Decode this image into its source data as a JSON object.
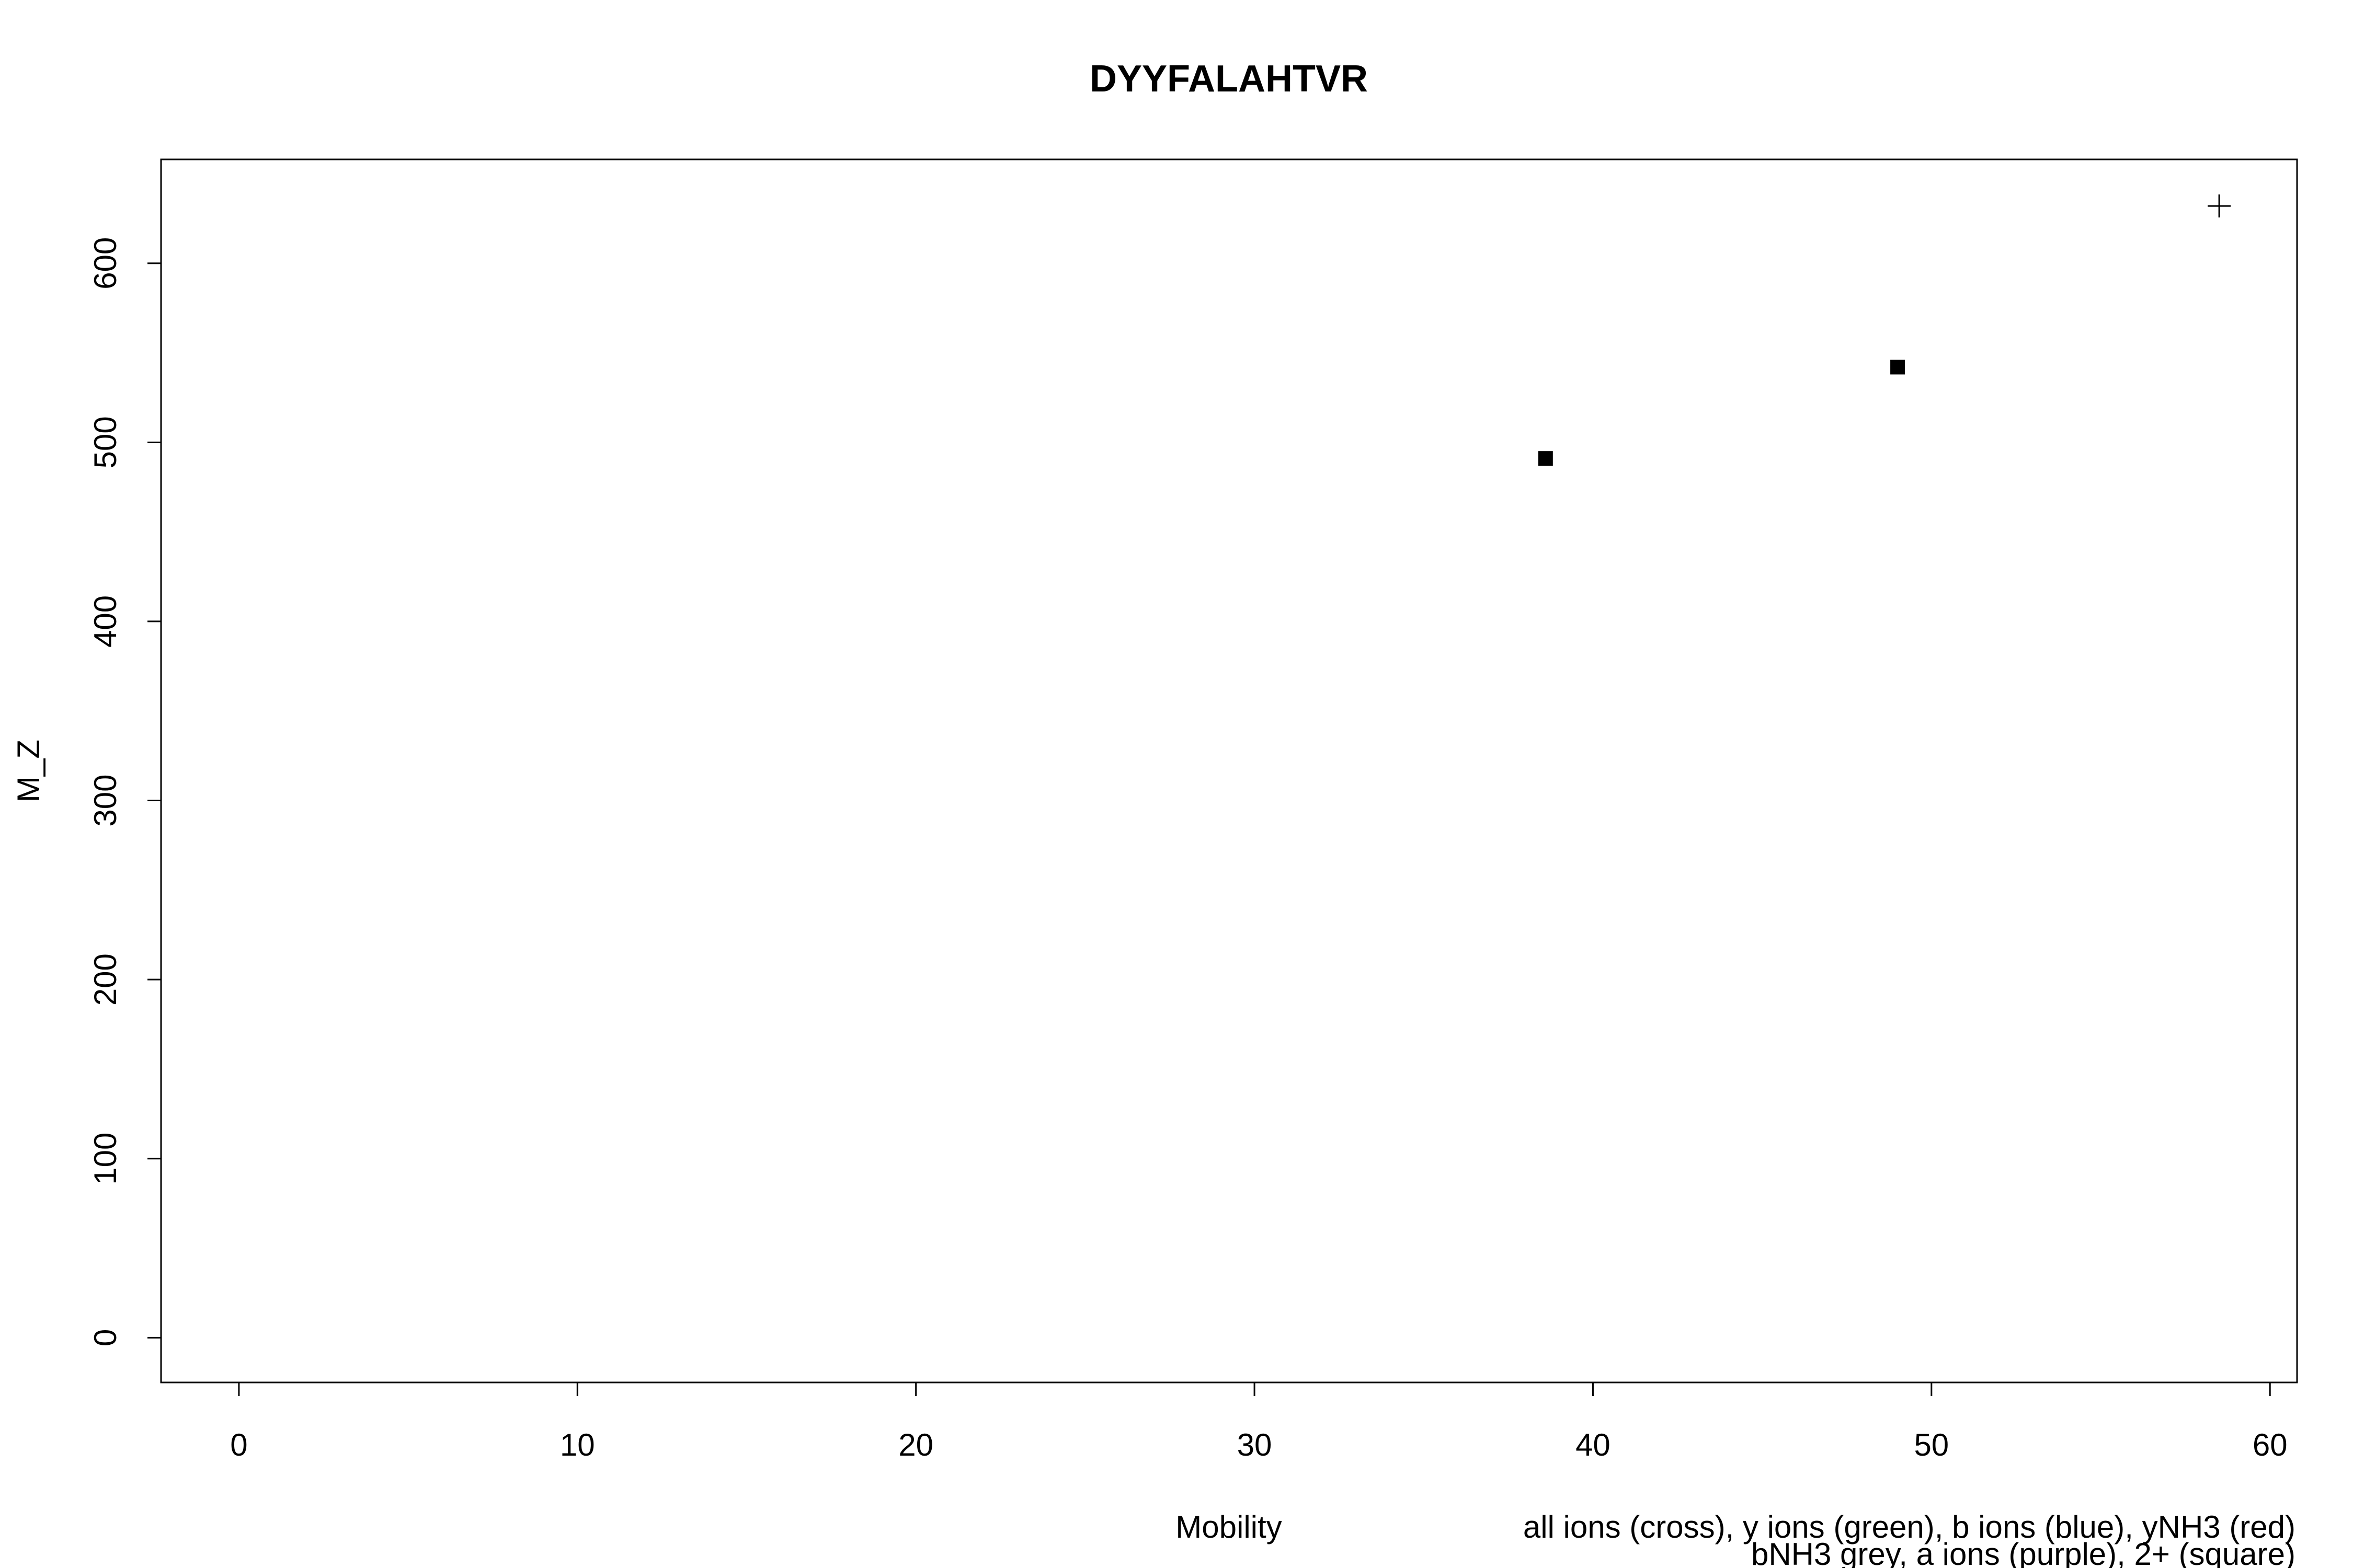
{
  "chart_data": {
    "type": "scatter",
    "title": "DYYFALAHTVR",
    "xlabel": "Mobility",
    "ylabel": "M_Z",
    "xlim": [
      -2.3,
      60.8
    ],
    "ylim": [
      -25,
      658
    ],
    "x_ticks": [
      0,
      10,
      20,
      30,
      40,
      50,
      60
    ],
    "y_ticks": [
      0,
      100,
      200,
      300,
      400,
      500,
      600
    ],
    "grid": false,
    "legend_notes": [
      "all ions (cross), y ions (green), b ions (blue), yNH3 (red)",
      "bNH3 grey, a ions (purple), 2+ (square)"
    ],
    "series": [
      {
        "marker": "square",
        "color": "#000000",
        "points": [
          {
            "x": 38.6,
            "y": 491
          },
          {
            "x": 49.0,
            "y": 542
          }
        ]
      },
      {
        "marker": "cross",
        "color": "#000000",
        "points": [
          {
            "x": 58.5,
            "y": 632
          }
        ]
      }
    ]
  }
}
